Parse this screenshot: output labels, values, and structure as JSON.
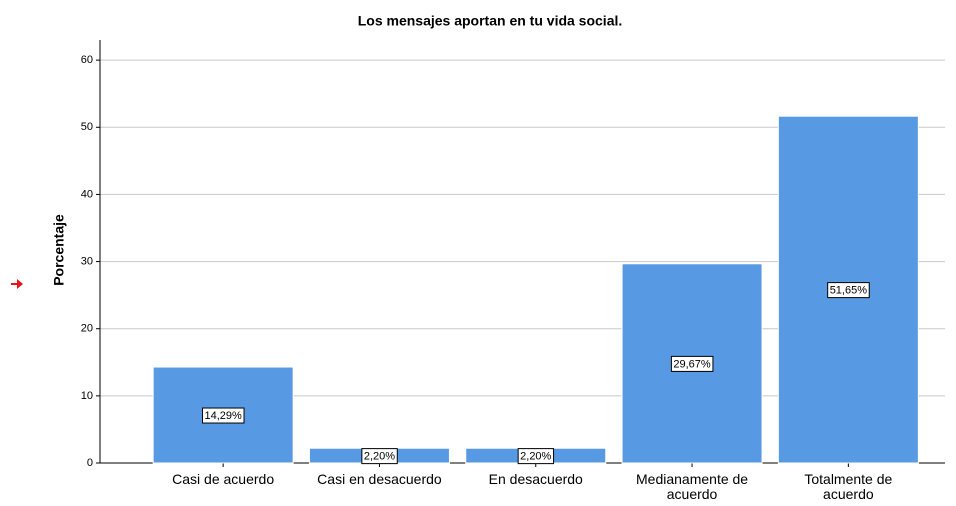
{
  "chart_data": {
    "type": "bar",
    "title": "Los mensajes aportan en tu vida social.",
    "y_label": "Porcentaje",
    "categories": [
      "Casi de acuerdo",
      "Casi en desacuerdo",
      "En desacuerdo",
      "Medianamente de acuerdo",
      "Totalmente de acuerdo"
    ],
    "values": [
      14.29,
      2.2,
      2.2,
      29.67,
      51.65
    ],
    "value_labels": [
      "14,29%",
      "2,20%",
      "2,20%",
      "29,67%",
      "51,65%"
    ],
    "color": "#5899e4",
    "ylim": [
      0,
      63
    ],
    "yticks": [
      0,
      10,
      20,
      30,
      40,
      50,
      60
    ],
    "grid": true
  }
}
